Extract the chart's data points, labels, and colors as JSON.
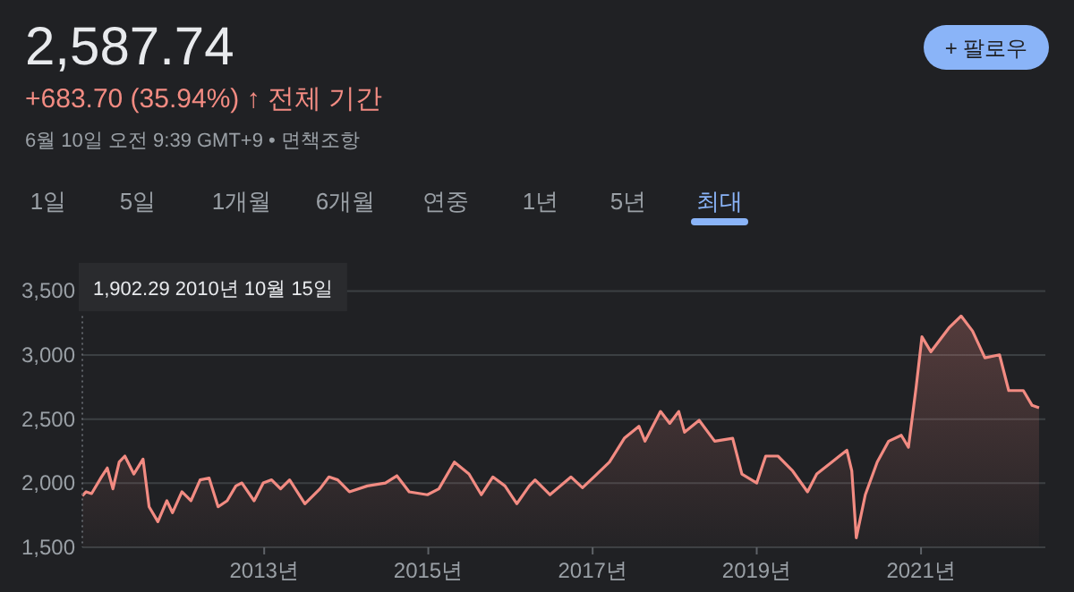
{
  "chart_data": {
    "type": "area",
    "title": "2,587.74",
    "subtitle": "+683.70 (35.94%) ↑ 전체 기간",
    "annotations": [
      "6월 10일 오전 9:39 GMT+9 • 면책조항",
      "1일",
      "5일",
      "1개월",
      "6개월",
      "연중",
      "1년",
      "5년",
      "최대",
      "+ 팔로우"
    ],
    "x": [
      "2010-10-15",
      "2010-11-01",
      "2010-11-25",
      "2011-01-08",
      "2011-02-03",
      "2011-02-28",
      "2011-03-28",
      "2011-04-22",
      "2011-06-01",
      "2011-07-12",
      "2011-08-08",
      "2011-09-16",
      "2011-10-26",
      "2011-11-20",
      "2012-01-01",
      "2012-02-10",
      "2012-03-22",
      "2012-05-01",
      "2012-06-10",
      "2012-07-20",
      "2012-08-28",
      "2012-09-24",
      "2012-11-17",
      "2012-12-28",
      "2013-02-03",
      "2013-03-15",
      "2013-04-24",
      "2013-07-01",
      "2013-09-06",
      "2013-10-16",
      "2013-11-24",
      "2014-01-15",
      "2014-04-05",
      "2014-06-24",
      "2014-08-14",
      "2014-10-08",
      "2014-12-28",
      "2015-02-17",
      "2015-04-27",
      "2015-07-01",
      "2015-08-25",
      "2015-10-15",
      "2015-12-08",
      "2016-01-30",
      "2016-03-25",
      "2016-04-20",
      "2016-06-25",
      "2016-09-27",
      "2016-11-17",
      "2017-01-12",
      "2017-03-17",
      "2017-05-22",
      "2017-07-26",
      "2017-08-22",
      "2017-10-30",
      "2017-12-10",
      "2018-01-19",
      "2018-02-14",
      "2018-04-20",
      "2018-06-28",
      "2018-09-16",
      "2018-10-27",
      "2019-01-01",
      "2019-02-10",
      "2019-04-05",
      "2019-06-10",
      "2019-08-15",
      "2019-09-25",
      "2019-12-01",
      "2020-02-06",
      "2020-02-28",
      "2020-03-19",
      "2020-04-28",
      "2020-06-20",
      "2020-08-10",
      "2020-10-05",
      "2020-11-06",
      "2020-12-10",
      "2021-01-05",
      "2021-02-14",
      "2021-05-05",
      "2021-06-28",
      "2021-08-18",
      "2021-10-12",
      "2021-12-16",
      "2022-01-26",
      "2022-04-01",
      "2022-05-10",
      "2022-06-10"
    ],
    "series": [
      {
        "color": "#f28b82",
        "values": [
          1902,
          1933,
          1919,
          2049,
          2119,
          1956,
          2165,
          2212,
          2072,
          2188,
          1816,
          1700,
          1863,
          1770,
          1933,
          1863,
          2026,
          2040,
          1816,
          1863,
          1979,
          2002,
          1863,
          2002,
          2026,
          1956,
          2026,
          1840,
          1956,
          2049,
          2026,
          1933,
          1979,
          2002,
          2058,
          1933,
          1910,
          1956,
          2165,
          2072,
          1910,
          2049,
          1979,
          1840,
          1979,
          2026,
          1910,
          2049,
          1965,
          2058,
          2165,
          2351,
          2444,
          2328,
          2560,
          2467,
          2560,
          2398,
          2491,
          2328,
          2351,
          2072,
          2002,
          2212,
          2212,
          2095,
          1933,
          2072,
          2165,
          2258,
          2095,
          1574,
          1910,
          2165,
          2328,
          2374,
          2281,
          2747,
          3142,
          3026,
          3212,
          3305,
          3188,
          2979,
          3002,
          2723,
          2723,
          2607,
          2588
        ]
      }
    ],
    "xlim": [
      "2010-10-15",
      "2022-07-08"
    ],
    "xticks": [
      {
        "value": "2013-01-01",
        "label": "2013년"
      },
      {
        "value": "2015-01-01",
        "label": "2015년"
      },
      {
        "value": "2017-01-01",
        "label": "2017년"
      },
      {
        "value": "2019-01-01",
        "label": "2019년"
      },
      {
        "value": "2021-01-01",
        "label": "2021년"
      }
    ],
    "ylim": [
      1500,
      3500
    ],
    "yticks": [
      {
        "value": 1500,
        "label": "1,500"
      },
      {
        "value": 2000,
        "label": "2,000"
      },
      {
        "value": 2500,
        "label": "2,500"
      },
      {
        "value": 3000,
        "label": "3,000"
      },
      {
        "value": 3500,
        "label": "3,500"
      }
    ],
    "grid": "y",
    "ref_lines": [
      {
        "axis": "x",
        "value": "2010-10-15",
        "label": "1,902.29 2010년 10월 15일",
        "line_style": "dotted",
        "color": "#5f6368"
      }
    ]
  }
}
